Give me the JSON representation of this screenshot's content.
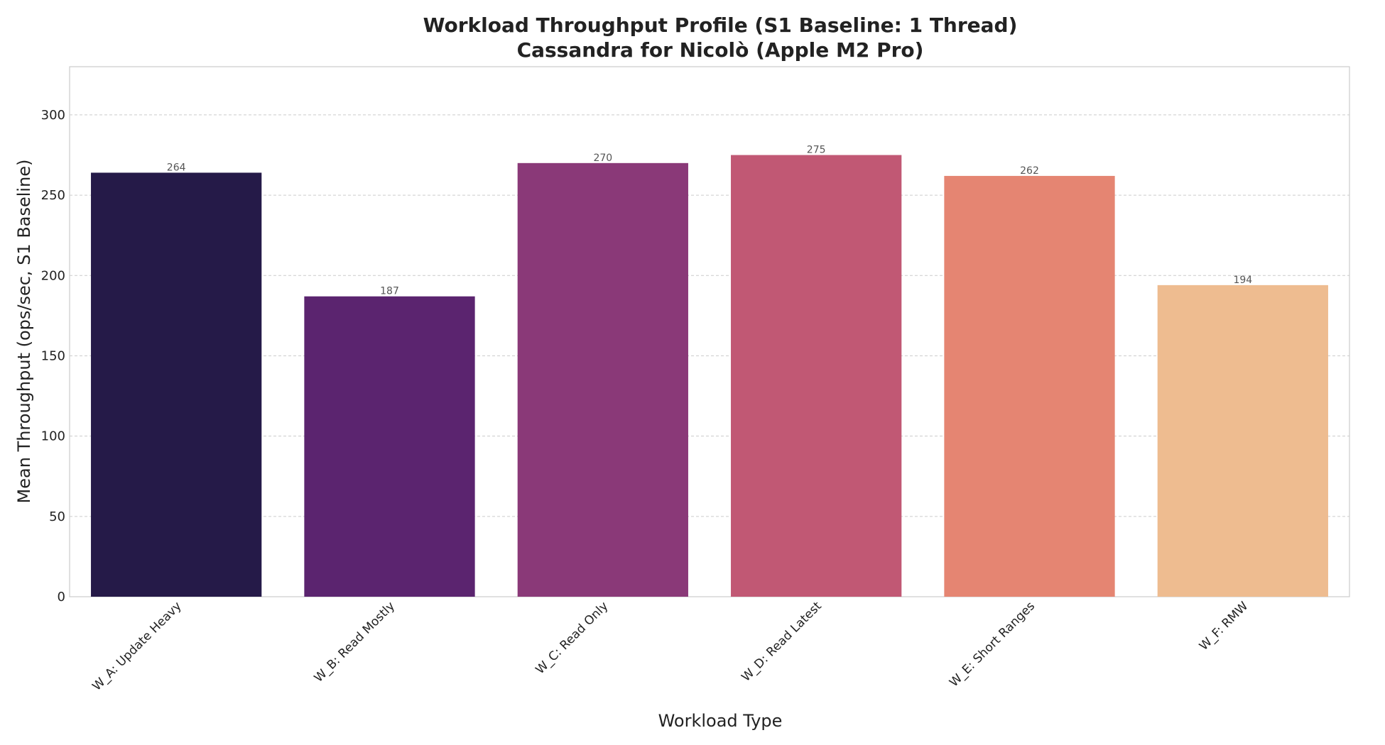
{
  "chart_data": {
    "type": "bar",
    "title": "Workload Throughput Profile (S1 Baseline: 1 Thread)",
    "subtitle": "Cassandra for Nicolò (Apple M2 Pro)",
    "xlabel": "Workload Type",
    "ylabel": "Mean Throughput (ops/sec, S1 Baseline)",
    "categories": [
      "W_A: Update Heavy",
      "W_B: Read Mostly",
      "W_C: Read Only",
      "W_D: Read Latest",
      "W_E: Short Ranges",
      "W_F: RMW"
    ],
    "values": [
      264,
      187,
      270,
      275,
      262,
      194
    ],
    "data_labels": [
      "264",
      "187",
      "270",
      "275",
      "262",
      "194"
    ],
    "ylim": [
      0,
      330
    ],
    "yticks": [
      0,
      50,
      100,
      150,
      200,
      250,
      300
    ],
    "ytick_labels": [
      "0",
      "50",
      "100",
      "150",
      "200",
      "250",
      "300"
    ],
    "colors": [
      "#251a48",
      "#5b246f",
      "#8a3978",
      "#c15874",
      "#e58572",
      "#eebc90"
    ],
    "grid": true,
    "grid_axis": "y"
  }
}
